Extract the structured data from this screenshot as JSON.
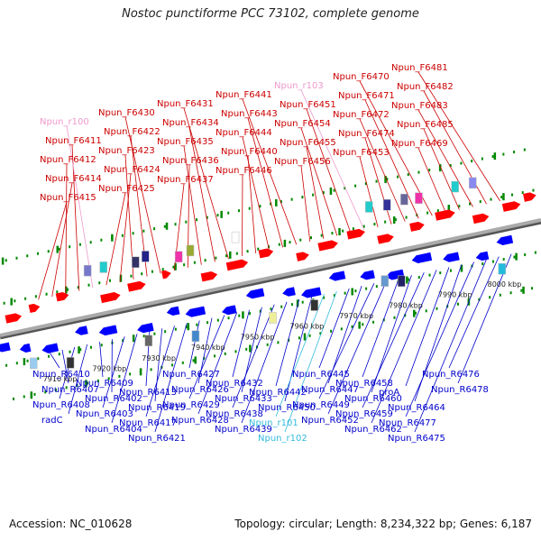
{
  "title": "Nostoc punctiforme PCC 73102, complete genome",
  "footer": {
    "accession": "Accession: NC_010628",
    "summary": "Topology: circular; Length: 8,234,322 bp; Genes: 6,187"
  },
  "colors": {
    "forward_label": "#cc0000",
    "reverse_label": "#0000cc",
    "rna_forward_label": "#ee99cc",
    "rna_reverse_label": "#33bbdd",
    "forward_gene": "#ff0000",
    "reverse_gene": "#0000ff",
    "backbone": "#888888",
    "tick": "#008800"
  },
  "kbp_labels": [
    "7910 kbp",
    "7920 kbp",
    "7930 kbp",
    "7940 kbp",
    "7950 kbp",
    "7960 kbp",
    "7970 kbp",
    "7980 kbp",
    "7990 kbp",
    "8000 kbp"
  ],
  "forward_labels": [
    {
      "text": "Npun_F6415",
      "rna": false
    },
    {
      "text": "Npun_F6414",
      "rna": false
    },
    {
      "text": "Npun_F6412",
      "rna": false
    },
    {
      "text": "Npun_F6411",
      "rna": false
    },
    {
      "text": "Npun_r100",
      "rna": true
    },
    {
      "text": "Npun_F6425",
      "rna": false
    },
    {
      "text": "Npun_F6424",
      "rna": false
    },
    {
      "text": "Npun_F6423",
      "rna": false
    },
    {
      "text": "Npun_F6422",
      "rna": false
    },
    {
      "text": "Npun_F6430",
      "rna": false
    },
    {
      "text": "Npun_F6437",
      "rna": false
    },
    {
      "text": "Npun_F6436",
      "rna": false
    },
    {
      "text": "Npun_F6435",
      "rna": false
    },
    {
      "text": "Npun_F6434",
      "rna": false
    },
    {
      "text": "Npun_F6431",
      "rna": false
    },
    {
      "text": "Npun_F6446",
      "rna": false
    },
    {
      "text": "Npun_F6440",
      "rna": false
    },
    {
      "text": "Npun_F6444",
      "rna": false
    },
    {
      "text": "Npun_F6443",
      "rna": false
    },
    {
      "text": "Npun_F6441",
      "rna": false
    },
    {
      "text": "Npun_F6456",
      "rna": false
    },
    {
      "text": "Npun_F6455",
      "rna": false
    },
    {
      "text": "Npun_F6454",
      "rna": false
    },
    {
      "text": "Npun_F6451",
      "rna": false
    },
    {
      "text": "Npun_r103",
      "rna": true
    },
    {
      "text": "Npun_F6453",
      "rna": false
    },
    {
      "text": "Npun_F6474",
      "rna": false
    },
    {
      "text": "Npun_F6472",
      "rna": false
    },
    {
      "text": "Npun_F6471",
      "rna": false
    },
    {
      "text": "Npun_F6470",
      "rna": false
    },
    {
      "text": "Npun_F6469",
      "rna": false
    },
    {
      "text": "Npun_F6485",
      "rna": false
    },
    {
      "text": "Npun_F6483",
      "rna": false
    },
    {
      "text": "Npun_F6482",
      "rna": false
    },
    {
      "text": "Npun_F6481",
      "rna": false
    }
  ],
  "reverse_labels": [
    {
      "text": "Npun_R6410",
      "rna": false
    },
    {
      "text": "Npun_R6407",
      "rna": false
    },
    {
      "text": "Npun_R6408",
      "rna": false
    },
    {
      "text": "radC",
      "rna": false
    },
    {
      "text": "Npun_R6409",
      "rna": false
    },
    {
      "text": "Npun_R6402",
      "rna": false
    },
    {
      "text": "Npun_R6403",
      "rna": false
    },
    {
      "text": "Npun_R6404",
      "rna": false
    },
    {
      "text": "Npun_R6413",
      "rna": false
    },
    {
      "text": "Npun_R6419",
      "rna": false
    },
    {
      "text": "Npun_R6417",
      "rna": false
    },
    {
      "text": "Npun_R6421",
      "rna": false
    },
    {
      "text": "Npun_R6427",
      "rna": false
    },
    {
      "text": "Npun_R6426",
      "rna": false
    },
    {
      "text": "Npun_R6429",
      "rna": false
    },
    {
      "text": "Npun_R6428",
      "rna": false
    },
    {
      "text": "Npun_R6432",
      "rna": false
    },
    {
      "text": "Npun_R6433",
      "rna": false
    },
    {
      "text": "Npun_R6438",
      "rna": false
    },
    {
      "text": "Npun_R6439",
      "rna": false
    },
    {
      "text": "Npun_R6442",
      "rna": false
    },
    {
      "text": "Npun_R6450",
      "rna": false
    },
    {
      "text": "Npun_r101",
      "rna": true
    },
    {
      "text": "Npun_r102",
      "rna": true
    },
    {
      "text": "Npun_R6445",
      "rna": false
    },
    {
      "text": "Npun_R6447",
      "rna": false
    },
    {
      "text": "Npun_R6449",
      "rna": false
    },
    {
      "text": "Npun_R6452",
      "rna": false
    },
    {
      "text": "Npun_R6458",
      "rna": false
    },
    {
      "text": "Npun_R6460",
      "rna": false
    },
    {
      "text": "Npun_R6459",
      "rna": false
    },
    {
      "text": "Npun_R6462",
      "rna": false
    },
    {
      "text": "proA",
      "rna": false
    },
    {
      "text": "Npun_R6464",
      "rna": false
    },
    {
      "text": "Npun_R6477",
      "rna": false
    },
    {
      "text": "Npun_R6475",
      "rna": false
    },
    {
      "text": "Npun_R6476",
      "rna": false
    },
    {
      "text": "Npun_R6478",
      "rna": false
    }
  ]
}
